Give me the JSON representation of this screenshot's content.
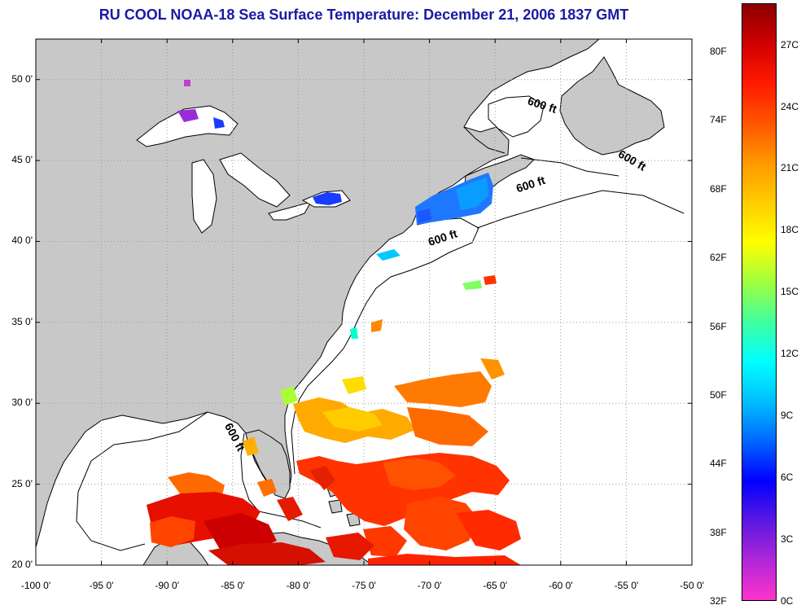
{
  "title": "RU COOL  NOAA-18  Sea Surface Temperature:  December 21, 2006 1837 GMT",
  "map": {
    "lon_min": -100,
    "lon_max": -50,
    "lat_min": 20,
    "lat_max": 52.5,
    "lat_ticks": [
      {
        "value": 20,
        "label": "20 0'"
      },
      {
        "value": 25,
        "label": "25 0'"
      },
      {
        "value": 30,
        "label": "30 0'"
      },
      {
        "value": 35,
        "label": "35 0'"
      },
      {
        "value": 40,
        "label": "40 0'"
      },
      {
        "value": 45,
        "label": "45 0'"
      },
      {
        "value": 50,
        "label": "50 0'"
      }
    ],
    "lon_ticks": [
      {
        "value": -100,
        "label": "-100 0'"
      },
      {
        "value": -95,
        "label": "-95 0'"
      },
      {
        "value": -90,
        "label": "-90 0'"
      },
      {
        "value": -85,
        "label": "-85 0'"
      },
      {
        "value": -80,
        "label": "-80 0'"
      },
      {
        "value": -75,
        "label": "-75 0'"
      },
      {
        "value": -70,
        "label": "-70 0'"
      },
      {
        "value": -65,
        "label": "-65 0'"
      },
      {
        "value": -60,
        "label": "-60 0'"
      },
      {
        "value": -55,
        "label": "-55 0'"
      },
      {
        "value": -50,
        "label": "-50 0'"
      }
    ],
    "isobath_labels": [
      {
        "text": "600 ft",
        "lon": -61.5,
        "lat": 48.2,
        "rotate": 18
      },
      {
        "text": "600 ft",
        "lon": -54.7,
        "lat": 44.8,
        "rotate": 30
      },
      {
        "text": "600 ft",
        "lon": -62.2,
        "lat": 43.3,
        "rotate": -18
      },
      {
        "text": "600 ft",
        "lon": -68.9,
        "lat": 40.0,
        "rotate": -18
      },
      {
        "text": "600 ft",
        "lon": -85.1,
        "lat": 27.8,
        "rotate": 62
      }
    ],
    "colors": {
      "land": "#c8c8c8",
      "water": "#ffffff",
      "coast": "#000000",
      "grid": "#999999"
    }
  },
  "colorbar": {
    "f_labels": [
      {
        "value": 32,
        "label": "32F"
      },
      {
        "value": 38,
        "label": "38F"
      },
      {
        "value": 44,
        "label": "44F"
      },
      {
        "value": 50,
        "label": "50F"
      },
      {
        "value": 56,
        "label": "56F"
      },
      {
        "value": 62,
        "label": "62F"
      },
      {
        "value": 68,
        "label": "68F"
      },
      {
        "value": 74,
        "label": "74F"
      },
      {
        "value": 80,
        "label": "80F"
      }
    ],
    "c_labels": [
      {
        "value": 0,
        "label": "0C"
      },
      {
        "value": 3,
        "label": "3C"
      },
      {
        "value": 6,
        "label": "6C"
      },
      {
        "value": 9,
        "label": "9C"
      },
      {
        "value": 12,
        "label": "12C"
      },
      {
        "value": 15,
        "label": "15C"
      },
      {
        "value": 18,
        "label": "18C"
      },
      {
        "value": 21,
        "label": "21C"
      },
      {
        "value": 24,
        "label": "24C"
      },
      {
        "value": 27,
        "label": "27C"
      }
    ],
    "c_min": 0,
    "c_max": 29,
    "gradient": [
      "#ff33cc",
      "#b027d8",
      "#5a18e0",
      "#0000ff",
      "#0066ff",
      "#00bfff",
      "#00ffff",
      "#40ffa0",
      "#a0ff40",
      "#ffff00",
      "#ffcc00",
      "#ff9900",
      "#ff5500",
      "#ff1a00",
      "#d00000",
      "#8b0000"
    ]
  }
}
